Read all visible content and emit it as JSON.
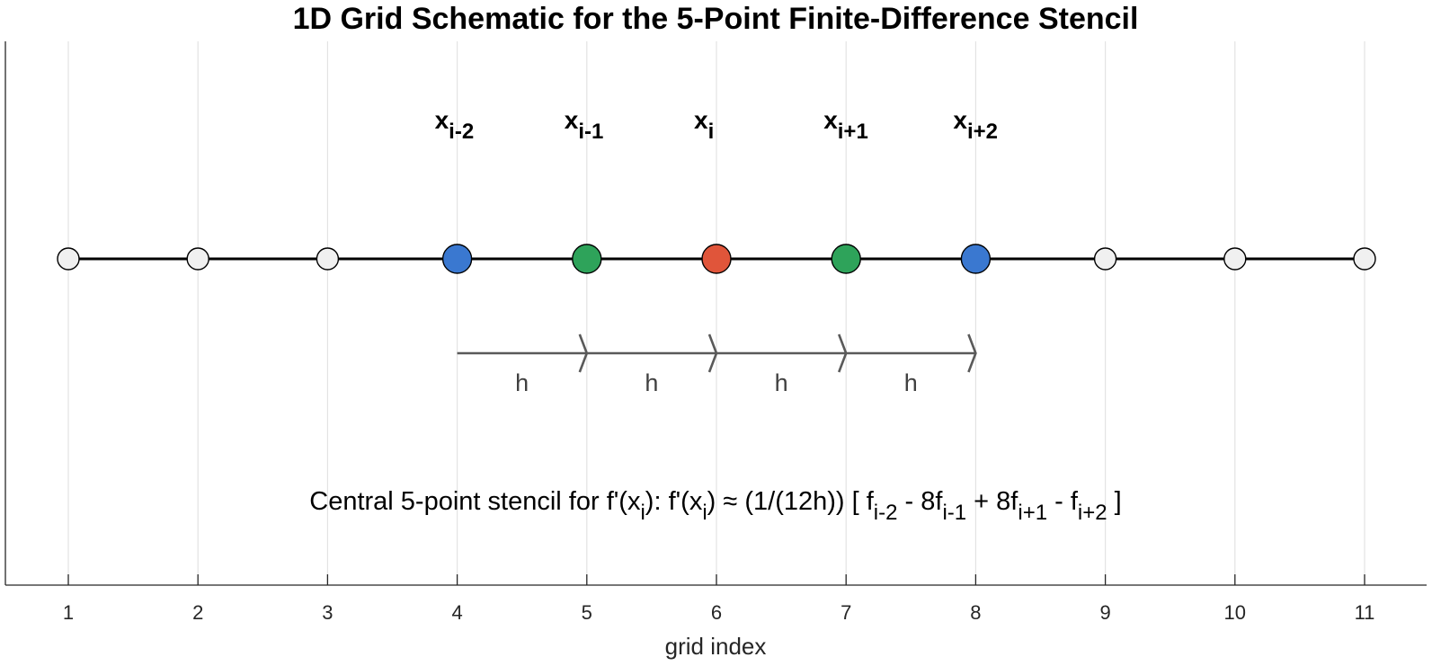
{
  "chart_data": {
    "type": "scatter",
    "title": "1D Grid Schematic for the 5-Point Finite-Difference Stencil",
    "xlabel": "grid index",
    "xlim": [
      0.5,
      11.5
    ],
    "x_ticks": [
      1,
      2,
      3,
      4,
      5,
      6,
      7,
      8,
      9,
      10,
      11
    ],
    "x_tick_labels": [
      "1",
      "2",
      "3",
      "4",
      "5",
      "6",
      "7",
      "8",
      "9",
      "10",
      "11"
    ],
    "grid": "vertical",
    "grid_points": [
      {
        "x": 1,
        "role": "inactive"
      },
      {
        "x": 2,
        "role": "inactive"
      },
      {
        "x": 3,
        "role": "inactive"
      },
      {
        "x": 4,
        "role": "outer"
      },
      {
        "x": 5,
        "role": "inner"
      },
      {
        "x": 6,
        "role": "center"
      },
      {
        "x": 7,
        "role": "inner"
      },
      {
        "x": 8,
        "role": "outer"
      },
      {
        "x": 9,
        "role": "inactive"
      },
      {
        "x": 10,
        "role": "inactive"
      },
      {
        "x": 11,
        "role": "inactive"
      }
    ],
    "role_colors": {
      "inactive": "#f0f0f0",
      "outer": "#3a78d0",
      "inner": "#2ea35a",
      "center": "#e0553a"
    },
    "line_color": "#000000",
    "arrow_color": "#595959",
    "point_labels": [
      {
        "x": 4,
        "base": "x",
        "sub": "i-2"
      },
      {
        "x": 5,
        "base": "x",
        "sub": "i-1"
      },
      {
        "x": 6,
        "base": "x",
        "sub": "i"
      },
      {
        "x": 7,
        "base": "x",
        "sub": "i+1"
      },
      {
        "x": 8,
        "base": "x",
        "sub": "i+2"
      }
    ],
    "spacing_arrows": [
      {
        "from": 4,
        "to": 5,
        "label": "h"
      },
      {
        "from": 5,
        "to": 6,
        "label": "h"
      },
      {
        "from": 6,
        "to": 7,
        "label": "h"
      },
      {
        "from": 7,
        "to": 8,
        "label": "h"
      }
    ],
    "annotation": {
      "segments": [
        {
          "t": "Central 5-point stencil for f'(x"
        },
        {
          "t": "i",
          "sub": true
        },
        {
          "t": "):  f'(x"
        },
        {
          "t": "i",
          "sub": true
        },
        {
          "t": ") ≈ (1/(12h)) [ f"
        },
        {
          "t": "i-2",
          "sub": true
        },
        {
          "t": " - 8f"
        },
        {
          "t": "i-1",
          "sub": true
        },
        {
          "t": " + 8f"
        },
        {
          "t": "i+1",
          "sub": true
        },
        {
          "t": " - f"
        },
        {
          "t": "i+2",
          "sub": true
        },
        {
          "t": " ]"
        }
      ]
    }
  }
}
